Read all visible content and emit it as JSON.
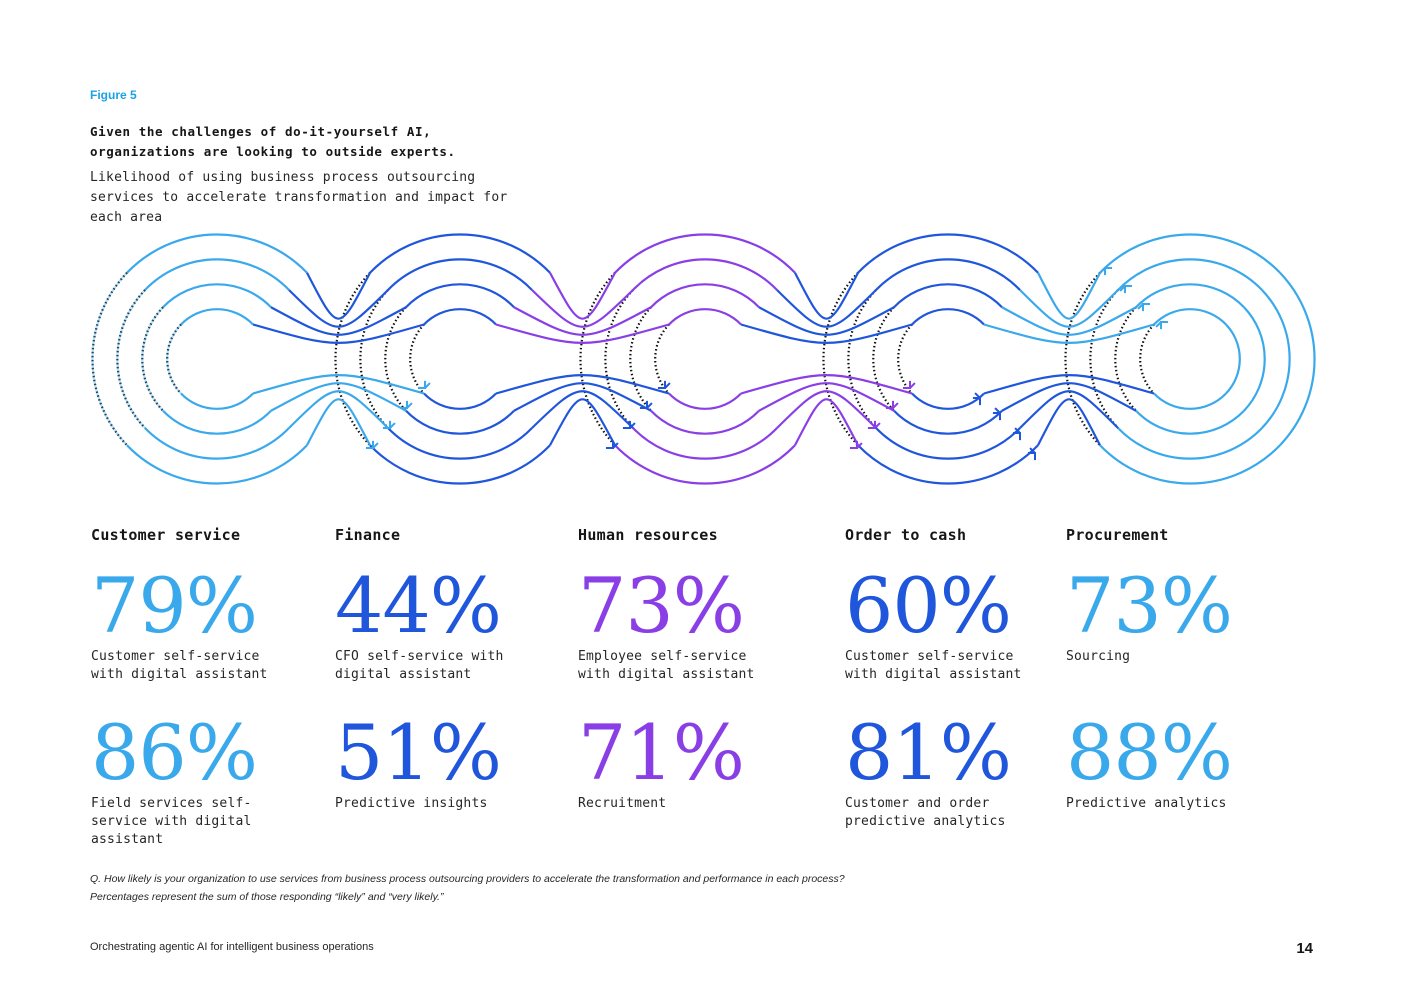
{
  "figure_label": "Figure 5",
  "headline": "Given the challenges of do-it-yourself AI, organizations are looking to outside experts.",
  "subheadline": "Likelihood of using business process outsourcing services to accelerate transformation and impact for each area",
  "colors": {
    "light_blue": "#3aa9ec",
    "blue": "#1f56dc",
    "purple": "#8a3ee6",
    "dots": "#111111"
  },
  "areas": [
    {
      "title": "Customer service",
      "color": "#3aa9ec",
      "stats": [
        {
          "value": "79%",
          "label": "Customer self-service with digital assistant"
        },
        {
          "value": "86%",
          "label": "Field services self-service with digital assistant"
        }
      ]
    },
    {
      "title": "Finance",
      "color": "#1f56dc",
      "stats": [
        {
          "value": "44%",
          "label": "CFO self-service with digital assistant"
        },
        {
          "value": "51%",
          "label": "Predictive insights"
        }
      ]
    },
    {
      "title": "Human resources",
      "color": "#8a3ee6",
      "stats": [
        {
          "value": "73%",
          "label": "Employee self-service with digital assistant"
        },
        {
          "value": "71%",
          "label": "Recruitment"
        }
      ]
    },
    {
      "title": "Order to cash",
      "color": "#1f56dc",
      "stats": [
        {
          "value": "60%",
          "label": "Customer self-service with digital assistant"
        },
        {
          "value": "81%",
          "label": "Customer and order predictive analytics"
        }
      ]
    },
    {
      "title": "Procurement",
      "color": "#3aa9ec",
      "stats": [
        {
          "value": "73%",
          "label": "Sourcing"
        },
        {
          "value": "88%",
          "label": "Predictive analytics"
        }
      ]
    }
  ],
  "footnote": "Q. How likely is your organization to use services from business process outsourcing providers to accelerate the transformation and performance in each process? Percentages represent the sum of those responding “likely” and “very likely.”",
  "footer_text": "Orchestrating agentic AI for intelligent business operations",
  "page_number": "14"
}
